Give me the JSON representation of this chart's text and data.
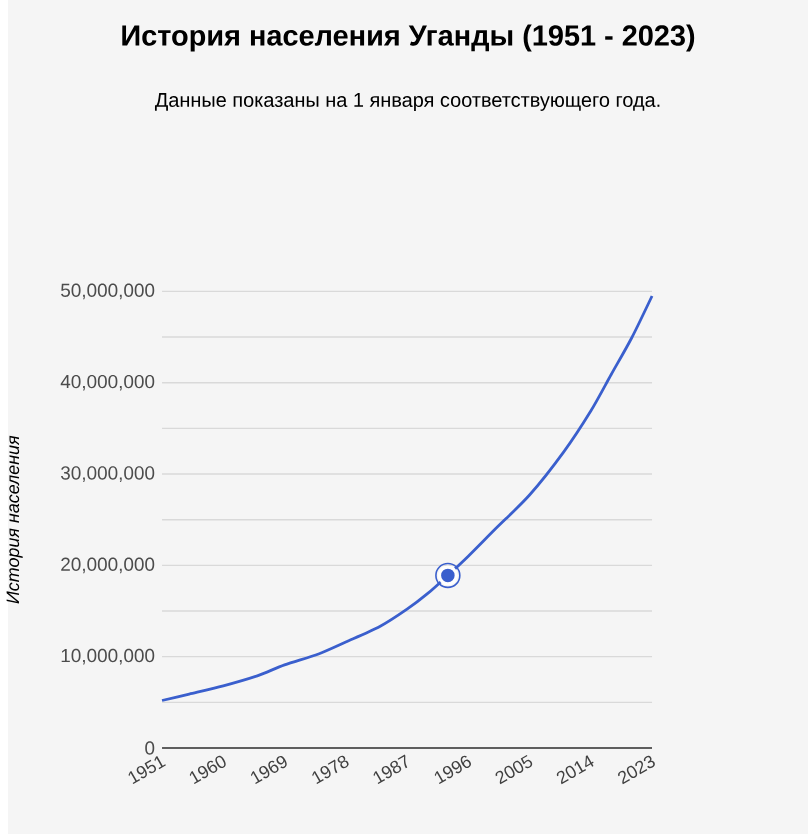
{
  "chart_data": {
    "type": "line",
    "title": "История населения Уганды (1951 - 2023)",
    "subtitle": "Данные показаны на 1 января соответствующего года.",
    "ylabel": "История населения",
    "xlim": [
      1951,
      2023
    ],
    "xticks": [
      1951,
      1960,
      1969,
      1978,
      1987,
      1996,
      2005,
      2014,
      2023
    ],
    "ylim": [
      0,
      50000000
    ],
    "yticks": [
      0,
      {
        "value": 5000000,
        "label": null
      },
      {
        "value": 10000000,
        "label": "10,000,000"
      },
      {
        "value": 15000000,
        "label": null
      },
      {
        "value": 20000000,
        "label": "20,000,000"
      },
      {
        "value": 25000000,
        "label": null
      },
      {
        "value": 30000000,
        "label": "30,000,000"
      },
      {
        "value": 35000000,
        "label": null
      },
      {
        "value": 40000000,
        "label": "40,000,000"
      },
      {
        "value": 45000000,
        "label": null
      },
      {
        "value": 50000000,
        "label": "50,000,000"
      }
    ],
    "grid": "y",
    "series": [
      {
        "color": "#3a5fcd",
        "marker": "none",
        "x": [
          1951,
          1955,
          1960,
          1965,
          1969,
          1974,
          1978,
          1983,
          1987,
          1990,
          1993,
          1996,
          2000,
          2005,
          2010,
          2014,
          2017,
          2020,
          2023
        ],
        "values": [
          5200000,
          5900000,
          6800000,
          7900000,
          9100000,
          10300000,
          11600000,
          13300000,
          15200000,
          16900000,
          18900000,
          21000000,
          24000000,
          27700000,
          32400000,
          36900000,
          40900000,
          44900000,
          49500000
        ]
      },
      {
        "type": "scatter",
        "color": "#3a5fcd",
        "marker": "circle",
        "x": [
          1993
        ],
        "values": [
          18900000
        ]
      }
    ]
  }
}
